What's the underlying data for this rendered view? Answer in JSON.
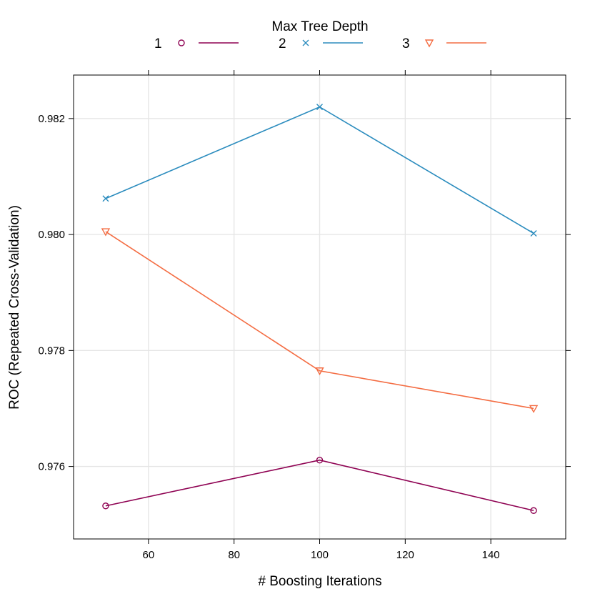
{
  "chart_data": {
    "type": "line",
    "legend": {
      "title": "Max Tree Depth",
      "placement": "top"
    },
    "xlabel": "# Boosting Iterations",
    "ylabel": "ROC (Repeated Cross-Validation)",
    "xlim": [
      42.5,
      157.5
    ],
    "ylim": [
      0.97475,
      0.98275
    ],
    "xticks": [
      60,
      80,
      100,
      120,
      140
    ],
    "xtick_labels": [
      "60",
      "80",
      "100",
      "120",
      "140"
    ],
    "yticks": [
      0.976,
      0.978,
      0.98,
      0.982
    ],
    "ytick_labels": [
      "0.976",
      "0.978",
      "0.980",
      "0.982"
    ],
    "grid": true,
    "x": [
      50,
      100,
      150
    ],
    "series": [
      {
        "name": "1",
        "marker": "circle",
        "color": "#8E0152",
        "values": [
          0.97532,
          0.97611,
          0.97524
        ]
      },
      {
        "name": "2",
        "marker": "x",
        "color": "#2B8CBE",
        "values": [
          0.98062,
          0.9822,
          0.98002
        ]
      },
      {
        "name": "3",
        "marker": "triangle-down",
        "color": "#F46D43",
        "values": [
          0.98005,
          0.97765,
          0.977
        ]
      }
    ]
  }
}
